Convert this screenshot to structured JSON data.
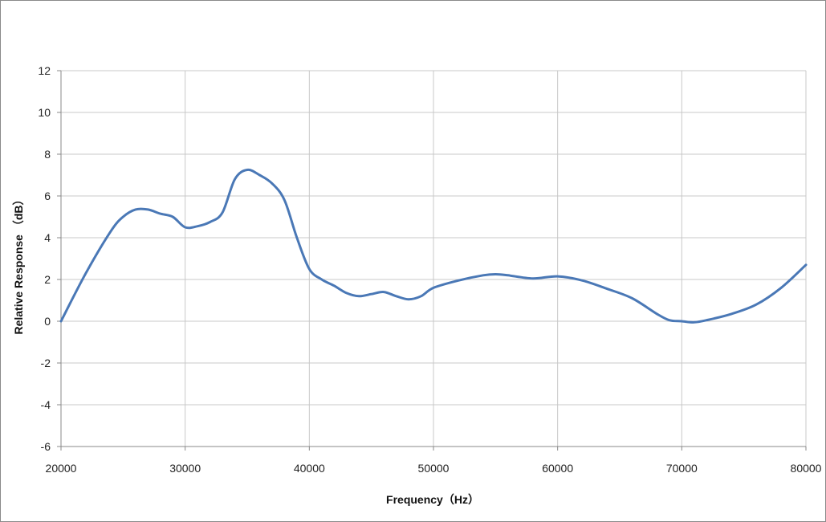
{
  "chart_data": {
    "type": "line",
    "title": "",
    "xlabel": "Frequency（Hz）",
    "ylabel": "Relative Response （dB）",
    "xlim": [
      20000,
      80000
    ],
    "ylim": [
      -6,
      12
    ],
    "x_ticks": [
      "20000",
      "30000",
      "40000",
      "50000",
      "60000",
      "70000",
      "80000"
    ],
    "y_ticks": [
      "12",
      "10",
      "8",
      "6",
      "4",
      "2",
      "0",
      "-2",
      "-4",
      "-6"
    ],
    "grid": true,
    "legend": "none",
    "colors": {
      "line": "#4a78b6",
      "grid": "#c8c8c8",
      "axis": "#888888"
    },
    "series": [
      {
        "x": [
          20000,
          22000,
          24000,
          25000,
          26000,
          27000,
          28000,
          29000,
          30000,
          31000,
          32000,
          33000,
          34000,
          35000,
          36000,
          37000,
          38000,
          39000,
          40000,
          41000,
          42000,
          43000,
          44000,
          45000,
          46000,
          47000,
          48000,
          49000,
          50000,
          52000,
          54000,
          55000,
          56000,
          58000,
          60000,
          62000,
          64000,
          66000,
          68000,
          69000,
          70000,
          71000,
          72000,
          74000,
          76000,
          78000,
          80000
        ],
        "y": [
          0,
          2.3,
          4.3,
          5.0,
          5.35,
          5.35,
          5.15,
          5.0,
          4.5,
          4.55,
          4.75,
          5.2,
          6.8,
          7.25,
          7.0,
          6.6,
          5.8,
          4.0,
          2.5,
          2.0,
          1.7,
          1.35,
          1.2,
          1.3,
          1.4,
          1.2,
          1.05,
          1.2,
          1.6,
          1.95,
          2.2,
          2.25,
          2.2,
          2.05,
          2.15,
          1.95,
          1.55,
          1.1,
          0.35,
          0.05,
          0.0,
          -0.05,
          0.05,
          0.35,
          0.8,
          1.6,
          2.7
        ]
      }
    ]
  }
}
